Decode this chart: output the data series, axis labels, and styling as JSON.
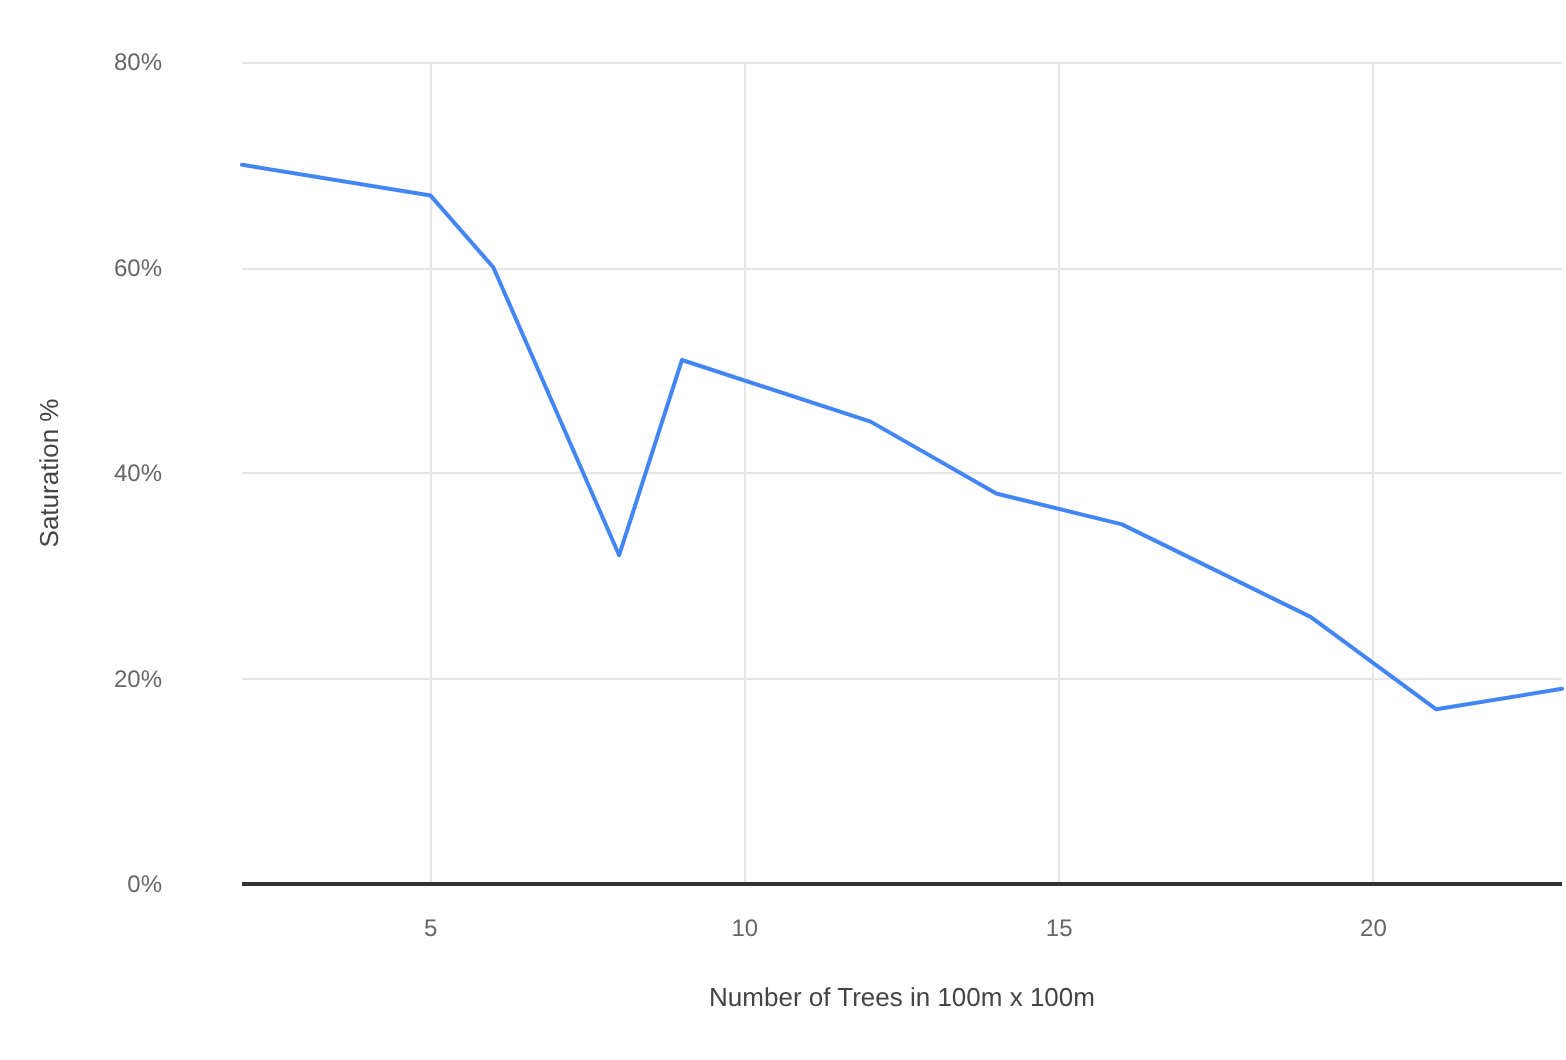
{
  "chart_data": {
    "type": "line",
    "xlabel": "Number of Trees in 100m x 100m",
    "ylabel": "Saturation %",
    "x": [
      2,
      5,
      6,
      8,
      9,
      12,
      14,
      16,
      19,
      21,
      23
    ],
    "series": [
      {
        "color": "#4285f4",
        "values": [
          70,
          67,
          60,
          32,
          51,
          45,
          38,
          35,
          26,
          17,
          19
        ]
      }
    ],
    "xlim": [
      2,
      23
    ],
    "xticks": [
      5,
      10,
      15,
      20
    ],
    "ylim": [
      0,
      80
    ],
    "yticks": [
      {
        "value": 0,
        "label": "0%"
      },
      {
        "value": 20,
        "label": "20%"
      },
      {
        "value": 40,
        "label": "40%"
      },
      {
        "value": 60,
        "label": "60%"
      },
      {
        "value": 80,
        "label": "80%"
      }
    ],
    "grid": true,
    "marker": "none",
    "line_style": "solid"
  }
}
